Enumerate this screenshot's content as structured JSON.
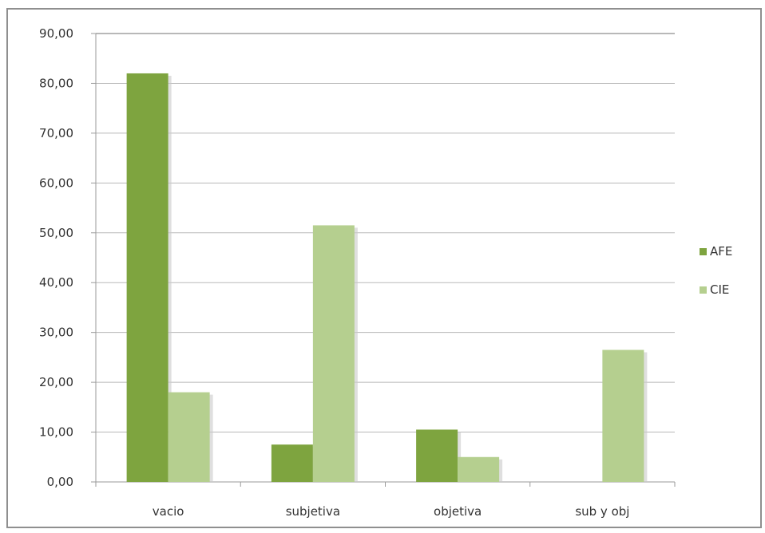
{
  "chart_data": {
    "type": "bar",
    "categories": [
      "vacio",
      "subjetiva",
      "objetiva",
      "sub y obj"
    ],
    "series": [
      {
        "name": "AFE",
        "values": [
          82.0,
          7.5,
          10.5,
          0.0
        ],
        "color": "#7ea43f"
      },
      {
        "name": "CIE",
        "values": [
          18.0,
          51.5,
          5.0,
          26.5
        ],
        "color": "#b5cf8f"
      }
    ],
    "yticks": [
      "0,00",
      "10,00",
      "20,00",
      "30,00",
      "40,00",
      "50,00",
      "60,00",
      "70,00",
      "80,00",
      "90,00"
    ],
    "ylim": [
      0,
      90
    ],
    "grid": true,
    "legend_position": "right",
    "title": "",
    "xlabel": "",
    "ylabel": ""
  }
}
